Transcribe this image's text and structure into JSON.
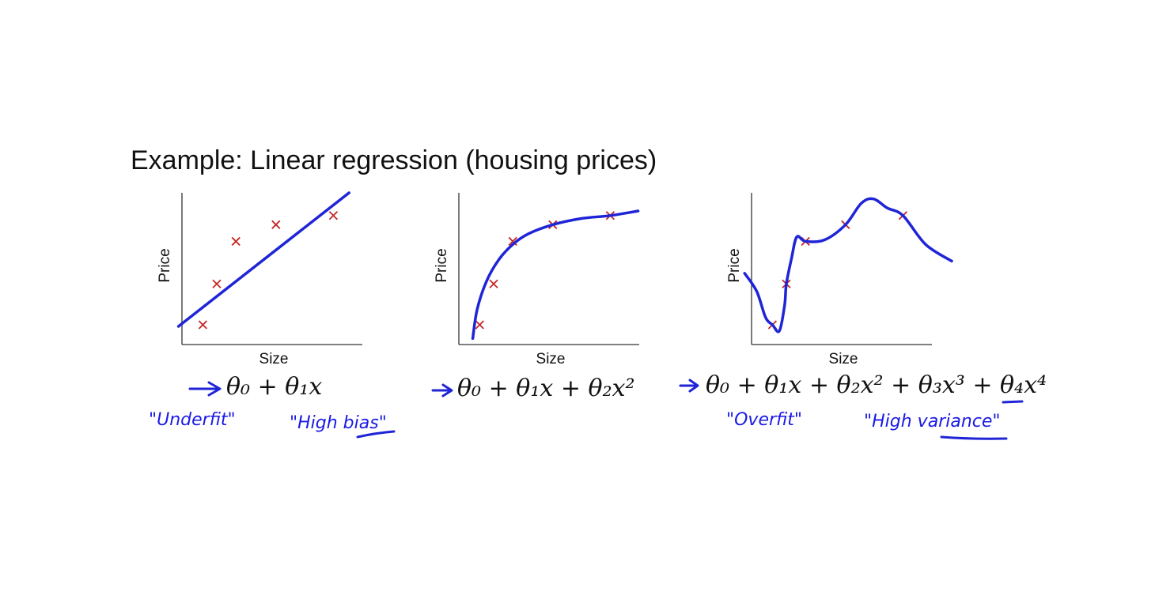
{
  "slide": {
    "title": "Example: Linear regression (housing prices)"
  },
  "colors": {
    "curve": "#1f25d6",
    "points": "#c62828",
    "ink": "#1a1ae6"
  },
  "chart_data": [
    {
      "type": "scatter",
      "xlabel": "Size",
      "ylabel": "Price",
      "xlim": [
        0,
        10
      ],
      "ylim": [
        0,
        10
      ],
      "points": [
        [
          1.2,
          1.3
        ],
        [
          2.0,
          4.0
        ],
        [
          3.1,
          6.8
        ],
        [
          5.4,
          7.9
        ],
        [
          8.7,
          8.5
        ]
      ],
      "fit": {
        "kind": "linear",
        "curve": [
          [
            -0.2,
            1.2
          ],
          [
            9.6,
            10.0
          ]
        ]
      },
      "formula": "θ₀ + θ₁x",
      "notes": [
        "\"Underfit\"",
        "\"High bias\""
      ]
    },
    {
      "type": "scatter",
      "xlabel": "Size",
      "ylabel": "Price",
      "xlim": [
        0,
        10
      ],
      "ylim": [
        0,
        10
      ],
      "points": [
        [
          1.2,
          1.3
        ],
        [
          2.0,
          4.0
        ],
        [
          3.1,
          6.8
        ],
        [
          5.4,
          7.9
        ],
        [
          8.7,
          8.5
        ]
      ],
      "fit": {
        "kind": "quadratic",
        "curve": [
          [
            0.8,
            0.4
          ],
          [
            1.05,
            2.3
          ],
          [
            1.6,
            4.2
          ],
          [
            2.3,
            5.6
          ],
          [
            3.1,
            6.6
          ],
          [
            4.0,
            7.3
          ],
          [
            5.4,
            7.9
          ],
          [
            7.0,
            8.3
          ],
          [
            8.7,
            8.5
          ],
          [
            10.3,
            8.8
          ]
        ]
      },
      "formula": "θ₀ + θ₁x + θ₂x²",
      "notes": []
    },
    {
      "type": "scatter",
      "xlabel": "Size",
      "ylabel": "Price",
      "xlim": [
        0,
        10
      ],
      "ylim": [
        0,
        10
      ],
      "points": [
        [
          1.2,
          1.3
        ],
        [
          2.0,
          4.0
        ],
        [
          3.1,
          6.8
        ],
        [
          5.4,
          7.9
        ],
        [
          8.7,
          8.5
        ]
      ],
      "fit": {
        "kind": "quartic",
        "curve": [
          [
            -0.4,
            4.7
          ],
          [
            0.3,
            3.5
          ],
          [
            0.8,
            1.8
          ],
          [
            1.2,
            1.3
          ],
          [
            1.6,
            0.9
          ],
          [
            1.9,
            2.6
          ],
          [
            2.0,
            4.0
          ],
          [
            2.3,
            5.7
          ],
          [
            2.6,
            7.1
          ],
          [
            3.1,
            6.8
          ],
          [
            4.2,
            6.9
          ],
          [
            5.4,
            7.9
          ],
          [
            6.3,
            9.3
          ],
          [
            7.0,
            9.6
          ],
          [
            7.8,
            9.0
          ],
          [
            8.7,
            8.5
          ],
          [
            10.0,
            6.6
          ],
          [
            11.5,
            5.5
          ]
        ]
      },
      "formula": "θ₀ + θ₁x + θ₂x² + θ₃x³ + θ₄x⁴",
      "notes": [
        "\"Overfit\"",
        "\"High variance\""
      ]
    }
  ]
}
